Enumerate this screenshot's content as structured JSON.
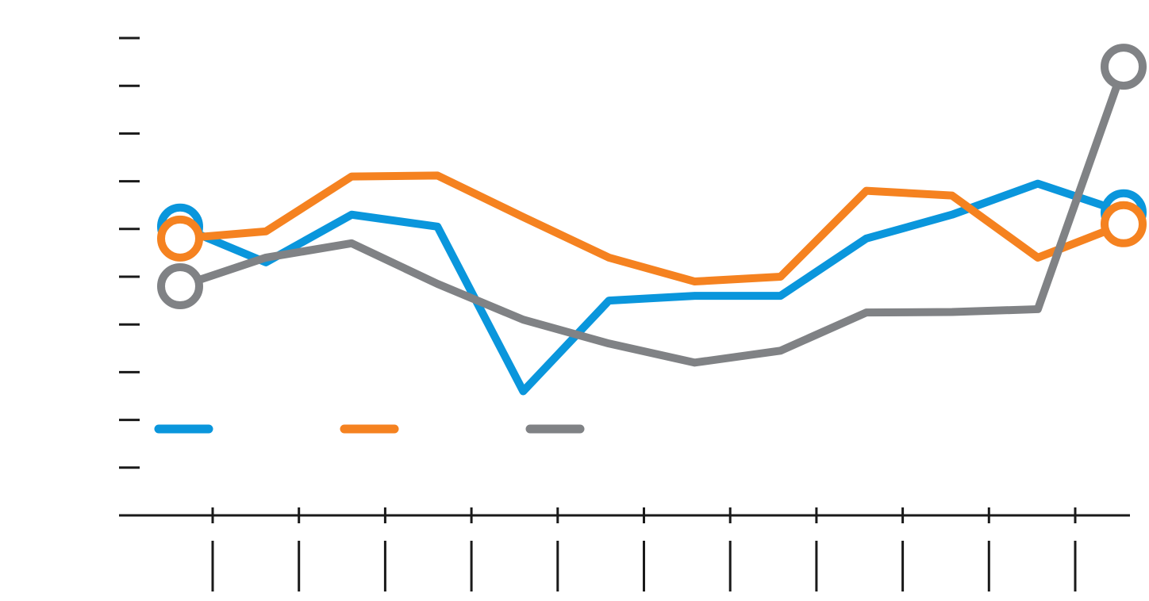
{
  "chart_data": {
    "type": "line",
    "x": [
      0,
      1,
      2,
      3,
      4,
      5,
      6,
      7,
      8,
      9,
      10,
      11
    ],
    "ylim": [
      0,
      10
    ],
    "y_ticks": [
      0,
      1,
      2,
      3,
      4,
      5,
      6,
      7,
      8,
      9,
      10
    ],
    "x_ticks": [
      1,
      2,
      3,
      4,
      5,
      6,
      7,
      8,
      9,
      10,
      11
    ],
    "grid": false,
    "legend_position": "lower-left",
    "series": [
      {
        "color": "#0a96dc",
        "values": [
          6.05,
          5.3,
          6.3,
          6.05,
          2.6,
          4.5,
          4.6,
          4.6,
          5.8,
          6.3,
          6.95,
          6.35
        ],
        "end_markers": true
      },
      {
        "color": "#f58220",
        "values": [
          5.8,
          5.95,
          7.1,
          7.12,
          6.25,
          5.4,
          4.9,
          5.0,
          6.8,
          6.7,
          5.4,
          6.1
        ],
        "end_markers": true
      },
      {
        "color": "#808285",
        "values": [
          4.8,
          5.4,
          5.7,
          4.85,
          4.1,
          3.6,
          3.2,
          3.45,
          4.25,
          4.26,
          4.32,
          9.4
        ],
        "end_markers": true
      }
    ]
  }
}
